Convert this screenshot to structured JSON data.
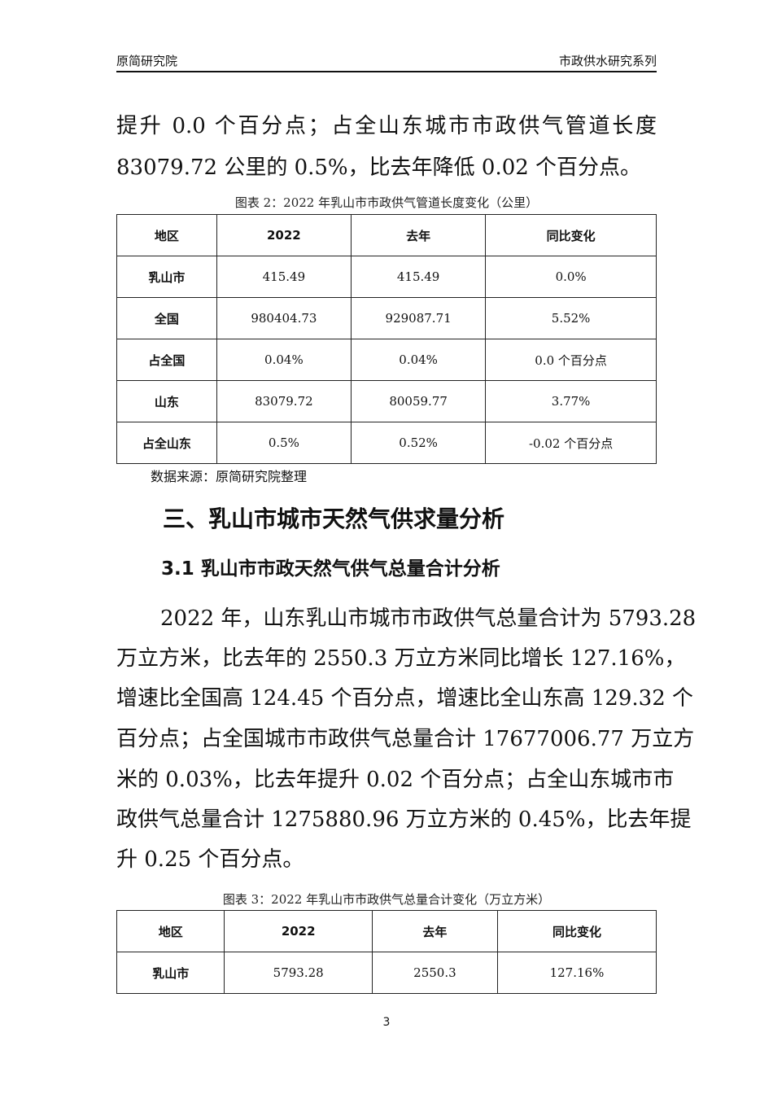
{
  "header": {
    "left": "原简研究院",
    "right": "市政供水研究系列"
  },
  "intro_lines": [
    "提升 0.0 个百分点；占全山东城市市政供气管道长度",
    "83079.72 公里的 0.5%，比去年降低 0.02 个百分点。"
  ],
  "table2": {
    "caption": "图表 2：2022 年乳山市市政供气管道长度变化（公里）",
    "headers": [
      "地区",
      "2022",
      "去年",
      "同比变化"
    ],
    "rows": [
      [
        "乳山市",
        "415.49",
        "415.49",
        "0.0%"
      ],
      [
        "全国",
        "980404.73",
        "929087.71",
        "5.52%"
      ],
      [
        "占全国",
        "0.04%",
        "0.04%",
        "0.0 个百分点"
      ],
      [
        "山东",
        "83079.72",
        "80059.77",
        "3.77%"
      ],
      [
        "占全山东",
        "0.5%",
        "0.52%",
        "-0.02 个百分点"
      ]
    ]
  },
  "source": "数据来源：原简研究院整理",
  "section_heading": "三、乳山市城市天然气供求量分析",
  "subsection_heading": "3.1 乳山市市政天然气供气总量合计分析",
  "para_lines": [
    "2022 年，山东乳山市城市市政供气总量合计为 5793.28",
    "万立方米，比去年的 2550.3 万立方米同比增长 127.16%，",
    "增速比全国高 124.45 个百分点，增速比全山东高 129.32 个",
    "百分点；占全国城市市政供气总量合计 17677006.77 万立方",
    "米的 0.03%，比去年提升 0.02 个百分点；占全山东城市市",
    "政供气总量合计 1275880.96 万立方米的 0.45%，比去年提",
    "升 0.25 个百分点。"
  ],
  "table3": {
    "caption": "图表 3：2022 年乳山市市政供气总量合计变化（万立方米）",
    "headers": [
      "地区",
      "2022",
      "去年",
      "同比变化"
    ],
    "rows": [
      [
        "乳山市",
        "5793.28",
        "2550.3",
        "127.16%"
      ]
    ]
  },
  "page_number": "3"
}
